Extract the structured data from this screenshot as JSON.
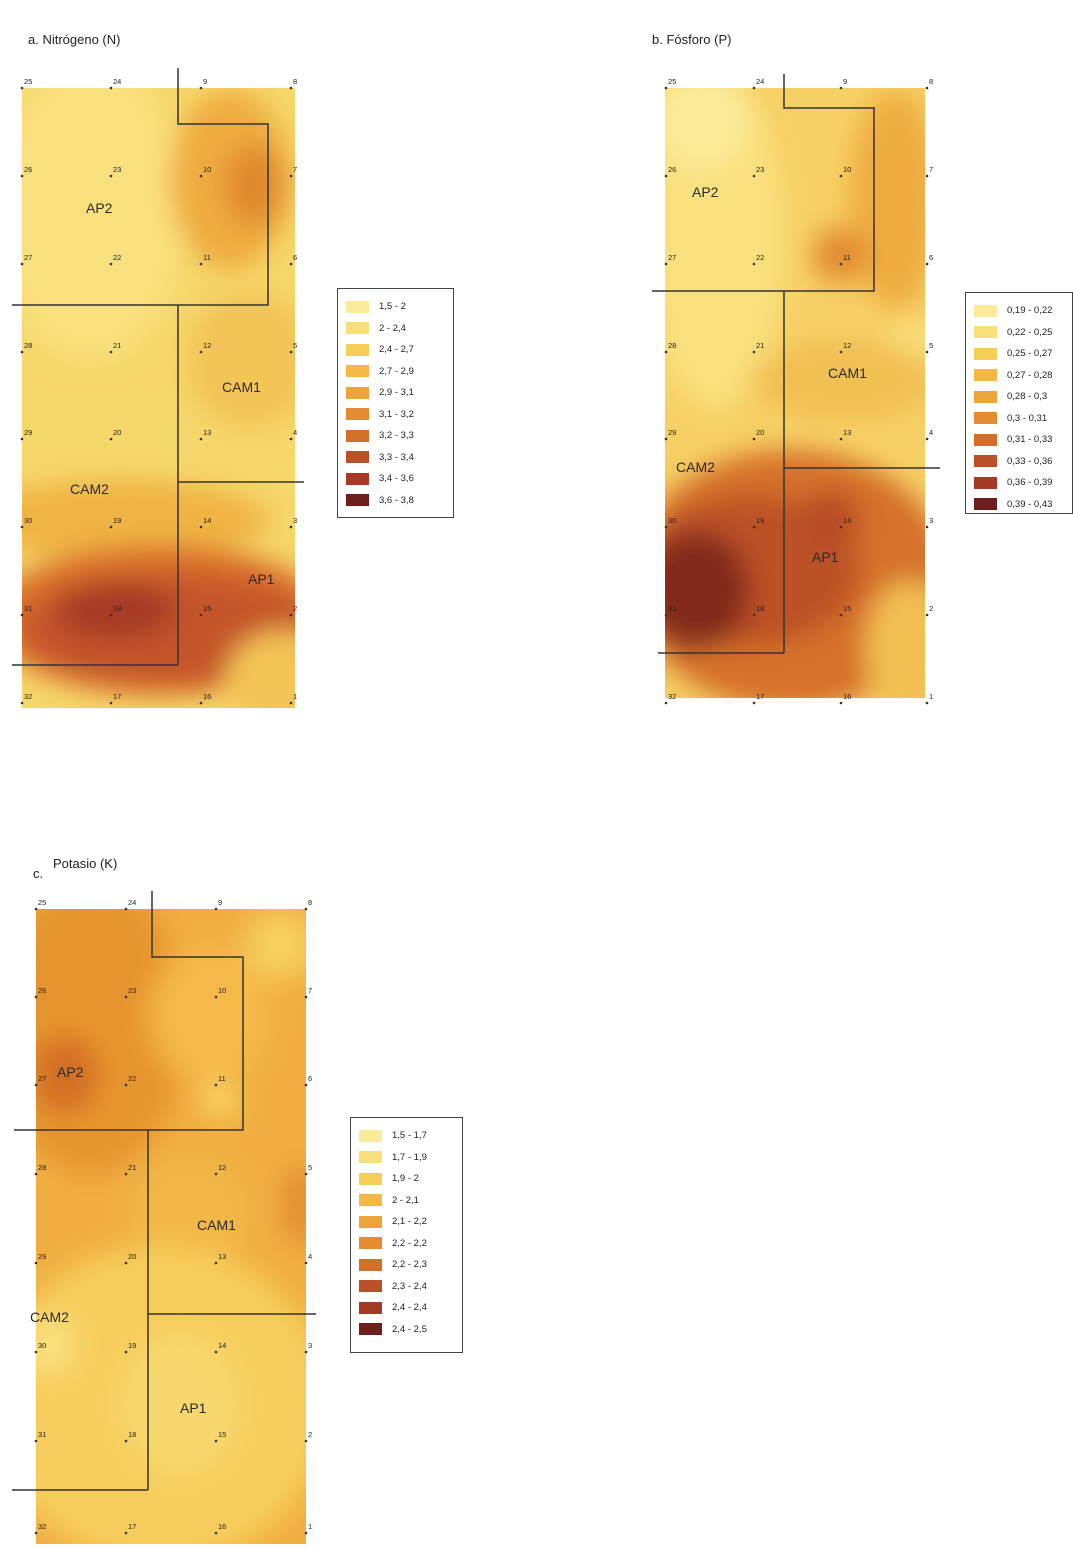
{
  "panels": [
    {
      "id": "a",
      "title": "a. Nitrógeno (N)",
      "legend": [
        "1,5 - 2",
        "2 - 2,4",
        "2,4 - 2,7",
        "2,7 - 2,9",
        "2,9 - 3,1",
        "3,1 - 3,2",
        "3,2 - 3,3",
        "3,3 - 3,4",
        "3,4 - 3,6",
        "3,6 - 3,8"
      ],
      "zones": [
        "AP2",
        "CAM1",
        "CAM2",
        "AP1"
      ],
      "points": [
        "25",
        "24",
        "9",
        "8",
        "26",
        "23",
        "10",
        "7",
        "27",
        "22",
        "11",
        "6",
        "28",
        "21",
        "12",
        "5",
        "29",
        "20",
        "13",
        "4",
        "30",
        "19",
        "14",
        "3",
        "31",
        "18",
        "15",
        "2",
        "32",
        "17",
        "16",
        "1"
      ]
    },
    {
      "id": "b",
      "title": "b. Fósforo (P)",
      "legend": [
        "0,19 - 0,22",
        "0,22 - 0,25",
        "0,25 - 0,27",
        "0,27 - 0,28",
        "0,28 - 0,3",
        "0,3 - 0,31",
        "0,31 - 0,33",
        "0,33 - 0,36",
        "0,36 - 0,39",
        "0,39 - 0,43"
      ],
      "zones": [
        "AP2",
        "CAM1",
        "CAM2",
        "AP1"
      ],
      "points": [
        "25",
        "24",
        "9",
        "8",
        "26",
        "23",
        "10",
        "7",
        "27",
        "22",
        "11",
        "6",
        "28",
        "21",
        "12",
        "5",
        "29",
        "20",
        "13",
        "4",
        "30",
        "19",
        "14",
        "3",
        "31",
        "18",
        "15",
        "2",
        "32",
        "17",
        "16",
        "1"
      ]
    },
    {
      "id": "c",
      "title_prefix": "c.",
      "title": "Potasio (K)",
      "legend": [
        "1,5 - 1,7",
        "1,7 - 1,9",
        "1,9 - 2",
        "2 - 2,1",
        "2,1 - 2,2",
        "2,2 - 2,2",
        "2,2 - 2,3",
        "2,3 - 2,4",
        "2,4 - 2,4",
        "2,4 - 2,5"
      ],
      "zones": [
        "AP2",
        "CAM1",
        "CAM2",
        "AP1"
      ],
      "points": [
        "25",
        "24",
        "9",
        "8",
        "26",
        "23",
        "10",
        "7",
        "27",
        "22",
        "11",
        "6",
        "28",
        "21",
        "12",
        "5",
        "29",
        "20",
        "13",
        "4",
        "30",
        "19",
        "14",
        "3",
        "31",
        "18",
        "15",
        "2",
        "32",
        "17",
        "16",
        "1"
      ]
    }
  ],
  "legend_colors": [
    "#fbeb9a",
    "#f9df7c",
    "#f7cd5a",
    "#f4b846",
    "#eda53a",
    "#e48c2f",
    "#d26f28",
    "#bb5026",
    "#a23a24",
    "#6e1f1b"
  ]
}
